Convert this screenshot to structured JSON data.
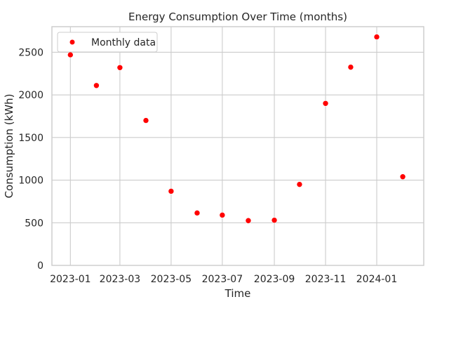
{
  "chart_data": {
    "type": "scatter",
    "title": "Energy Consumption Over Time (months)",
    "xlabel": "Time",
    "ylabel": "Consumption (kWh)",
    "xlim": [
      "2022-12-10",
      "2024-02-26"
    ],
    "ylim": [
      0,
      2800
    ],
    "x_ticks": [
      "2023-01",
      "2023-03",
      "2023-05",
      "2023-07",
      "2023-09",
      "2023-11",
      "2024-01"
    ],
    "y_ticks": [
      0,
      500,
      1000,
      1500,
      2000,
      2500
    ],
    "grid": true,
    "legend_position": "top-left",
    "series": [
      {
        "name": "Monthly data",
        "color": "#ff0000",
        "x": [
          "2023-01-01",
          "2023-02-01",
          "2023-03-01",
          "2023-04-01",
          "2023-05-01",
          "2023-06-01",
          "2023-07-01",
          "2023-08-01",
          "2023-09-01",
          "2023-10-01",
          "2023-11-01",
          "2023-12-01",
          "2024-01-01",
          "2024-02-01"
        ],
        "y": [
          2470,
          2110,
          2320,
          1700,
          870,
          615,
          590,
          525,
          530,
          950,
          1900,
          2325,
          2680,
          1040
        ]
      }
    ]
  }
}
